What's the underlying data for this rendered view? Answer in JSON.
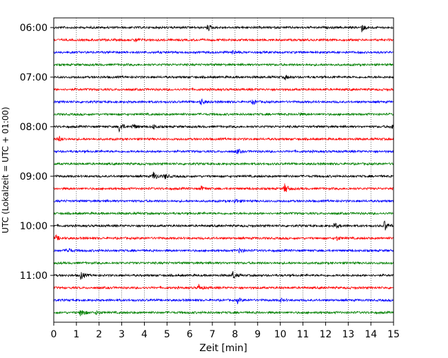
{
  "chart_data": {
    "type": "line",
    "title": "",
    "xlabel": "Zeit  [min]",
    "ylabel": "UTC (Lokalzeit = UTC + 01:00)",
    "xlim": [
      0,
      15
    ],
    "x_ticks": [
      0,
      1,
      2,
      3,
      4,
      5,
      6,
      7,
      8,
      9,
      10,
      11,
      12,
      13,
      14,
      15
    ],
    "x_grid": "dotted vertical lines at each minute",
    "y_tick_labels": [
      "06:00",
      "07:00",
      "08:00",
      "09:00",
      "10:00",
      "11:00"
    ],
    "series_colors": [
      "#000000",
      "#ff0000",
      "#0000ff",
      "#008000"
    ],
    "traces": [
      {
        "start": "06:00",
        "color": "#000000",
        "events": [
          {
            "t": 6.8,
            "amp": 0.35
          },
          {
            "t": 13.6,
            "amp": 0.45
          }
        ]
      },
      {
        "start": "06:15",
        "color": "#ff0000",
        "events": [
          {
            "t": 3.6,
            "amp": 0.25
          }
        ]
      },
      {
        "start": "06:30",
        "color": "#0000ff",
        "events": [
          {
            "t": 7.9,
            "amp": 0.2
          }
        ]
      },
      {
        "start": "06:45",
        "color": "#008000",
        "events": []
      },
      {
        "start": "07:00",
        "color": "#000000",
        "events": [
          {
            "t": 10.2,
            "amp": 0.25
          }
        ]
      },
      {
        "start": "07:15",
        "color": "#ff0000",
        "events": []
      },
      {
        "start": "07:30",
        "color": "#0000ff",
        "events": [
          {
            "t": 6.5,
            "amp": 0.35
          },
          {
            "t": 8.8,
            "amp": 0.3
          }
        ]
      },
      {
        "start": "07:45",
        "color": "#008000",
        "events": [
          {
            "t": 10.8,
            "amp": 0.15
          }
        ]
      },
      {
        "start": "08:00",
        "color": "#000000",
        "events": [
          {
            "t": 2.9,
            "amp": 0.7
          },
          {
            "t": 3.5,
            "amp": 0.3
          },
          {
            "t": 4.4,
            "amp": 0.25
          },
          {
            "t": 14.9,
            "amp": 0.35
          }
        ]
      },
      {
        "start": "08:15",
        "color": "#ff0000",
        "events": [
          {
            "t": 0.2,
            "amp": 0.35
          }
        ]
      },
      {
        "start": "08:30",
        "color": "#0000ff",
        "events": [
          {
            "t": 8.1,
            "amp": 0.25
          }
        ]
      },
      {
        "start": "08:45",
        "color": "#008000",
        "events": []
      },
      {
        "start": "09:00",
        "color": "#000000",
        "events": [
          {
            "t": 4.4,
            "amp": 0.55
          },
          {
            "t": 4.9,
            "amp": 0.3
          }
        ]
      },
      {
        "start": "09:15",
        "color": "#ff0000",
        "events": [
          {
            "t": 6.5,
            "amp": 0.25
          },
          {
            "t": 10.2,
            "amp": 0.6
          }
        ]
      },
      {
        "start": "09:30",
        "color": "#0000ff",
        "events": [
          {
            "t": 8.0,
            "amp": 0.3
          }
        ]
      },
      {
        "start": "09:45",
        "color": "#008000",
        "events": []
      },
      {
        "start": "10:00",
        "color": "#000000",
        "events": [
          {
            "t": 12.4,
            "amp": 0.4
          },
          {
            "t": 14.6,
            "amp": 0.65
          }
        ]
      },
      {
        "start": "10:15",
        "color": "#ff0000",
        "events": [
          {
            "t": 0.1,
            "amp": 0.3
          },
          {
            "t": 12.5,
            "amp": 0.25
          }
        ]
      },
      {
        "start": "10:30",
        "color": "#0000ff",
        "events": [
          {
            "t": 0.6,
            "amp": 0.4
          },
          {
            "t": 8.2,
            "amp": 0.3
          }
        ]
      },
      {
        "start": "10:45",
        "color": "#008000",
        "events": []
      },
      {
        "start": "11:00",
        "color": "#000000",
        "events": [
          {
            "t": 1.2,
            "amp": 0.5
          },
          {
            "t": 7.9,
            "amp": 0.45
          }
        ]
      },
      {
        "start": "11:15",
        "color": "#ff0000",
        "events": [
          {
            "t": 6.4,
            "amp": 0.35
          }
        ]
      },
      {
        "start": "11:30",
        "color": "#0000ff",
        "events": [
          {
            "t": 8.1,
            "amp": 0.3
          },
          {
            "t": 10.0,
            "amp": 0.2
          }
        ]
      },
      {
        "start": "11:45",
        "color": "#008000",
        "events": [
          {
            "t": 1.2,
            "amp": 0.6
          },
          {
            "t": 1.9,
            "amp": 0.25
          }
        ]
      }
    ]
  }
}
